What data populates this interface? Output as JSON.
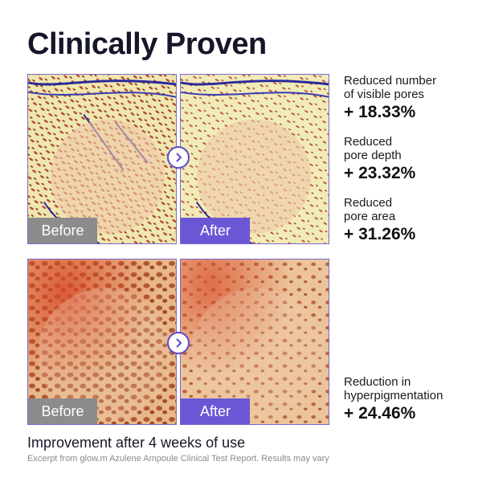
{
  "title": "Clinically Proven",
  "labels": {
    "before": "Before",
    "after": "After"
  },
  "icons": {
    "compare_arrow": "chevron-right-icon"
  },
  "colors": {
    "accent": "#6b57d6",
    "before_tag": "#8c8c8c",
    "title": "#16162a"
  },
  "stats": [
    {
      "label": "Reduced number\nof visible pores",
      "value": "+ 18.33%"
    },
    {
      "label": "Reduced\npore depth",
      "value": "+ 23.32%"
    },
    {
      "label": "Reduced\npore area",
      "value": "+ 31.26%"
    },
    {
      "label": "Reduction in\nhyperpigmentation",
      "value": "+ 24.46%"
    }
  ],
  "footer": {
    "headline": "Improvement after 4 weeks of use",
    "note": "Excerpt from glow.m Azulene Ampoule Clinical Test Report. Results may vary"
  }
}
